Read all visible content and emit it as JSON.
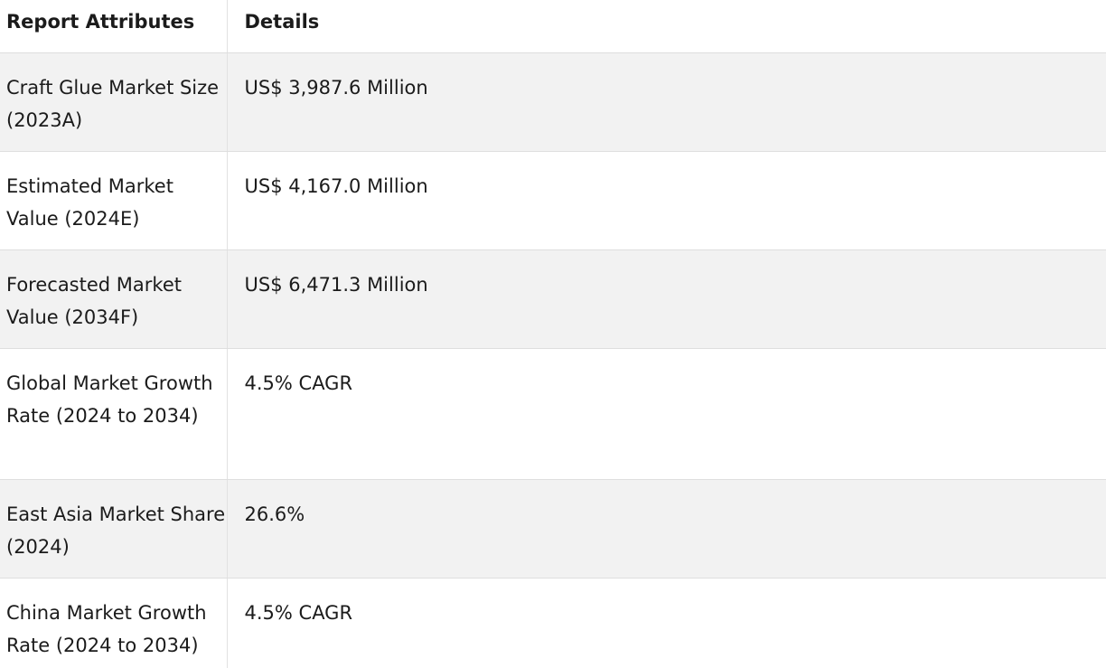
{
  "table": {
    "headers": [
      "Report Attributes",
      "Details"
    ],
    "rows": [
      {
        "attribute": "Craft Glue Market Size (2023A)",
        "detail": "US$ 3,987.6 Million"
      },
      {
        "attribute": "Estimated Market Value (2024E)",
        "detail": "US$ 4,167.0 Million"
      },
      {
        "attribute": "Forecasted Market Value (2034F)",
        "detail": "US$ 6,471.3 Million"
      },
      {
        "attribute": "Global Market Growth Rate (2024 to 2034)",
        "detail": "4.5% CAGR"
      },
      {
        "attribute": "East Asia Market Share (2024)",
        "detail": "26.6%"
      },
      {
        "attribute": "China Market Growth Rate (2024 to 2034)",
        "detail": "4.5% CAGR"
      }
    ]
  }
}
